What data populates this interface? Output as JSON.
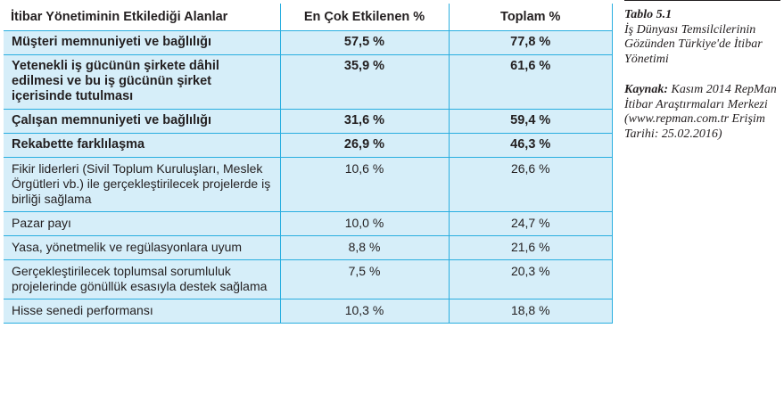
{
  "table": {
    "headers": [
      "İtibar Yönetiminin Etkilediği Alanlar",
      "En Çok Etkilenen %",
      "Toplam %"
    ],
    "rows": [
      {
        "label": "Müşteri memnuniyeti ve bağlılığı",
        "most": "57,5 %",
        "total": "77,8 %"
      },
      {
        "label": "Yetenekli iş gücünün şirkete dâhil edilmesi ve bu iş gücünün şirket içerisinde tutulması",
        "most": "35,9 %",
        "total": "61,6 %"
      },
      {
        "label": "Çalışan memnuniyeti ve bağlılığı",
        "most": "31,6 %",
        "total": "59,4 %"
      },
      {
        "label": "Rekabette farklılaşma",
        "most": "26,9 %",
        "total": "46,3 %"
      },
      {
        "label": "Fikir liderleri (Sivil Toplum Kuruluşları, Meslek Örgütleri vb.) ile gerçekleştirilecek projelerde iş birliği sağlama",
        "most": "10,6 %",
        "total": "26,6 %"
      },
      {
        "label": "Pazar payı",
        "most": "10,0 %",
        "total": "24,7 %"
      },
      {
        "label": "Yasa, yönetmelik ve regülasyonlara uyum",
        "most": "8,8 %",
        "total": "21,6 %"
      },
      {
        "label": "Gerçekleştirilecek toplumsal sorumluluk projelerinde gönüllük esasıyla destek sağlama",
        "most": "7,5 %",
        "total": "20,3 %"
      },
      {
        "label": "Hisse senedi performansı",
        "most": "10,3 %",
        "total": "18,8 %"
      }
    ]
  },
  "caption": {
    "label": "Tablo 5.1",
    "title": "İş Dünyası Temsilcilerinin Gözünden Türkiye'de İtibar Yönetimi",
    "source_label": "Kaynak:",
    "source_text": " Kasım 2014 RepMan İtibar Araştırmaları Merkezi (www.repman.com.tr Erişim Tarihi: 25.02.2016)"
  },
  "colors": {
    "border": "#29aee0",
    "shade": "#d6eef9",
    "text": "#231f20"
  }
}
